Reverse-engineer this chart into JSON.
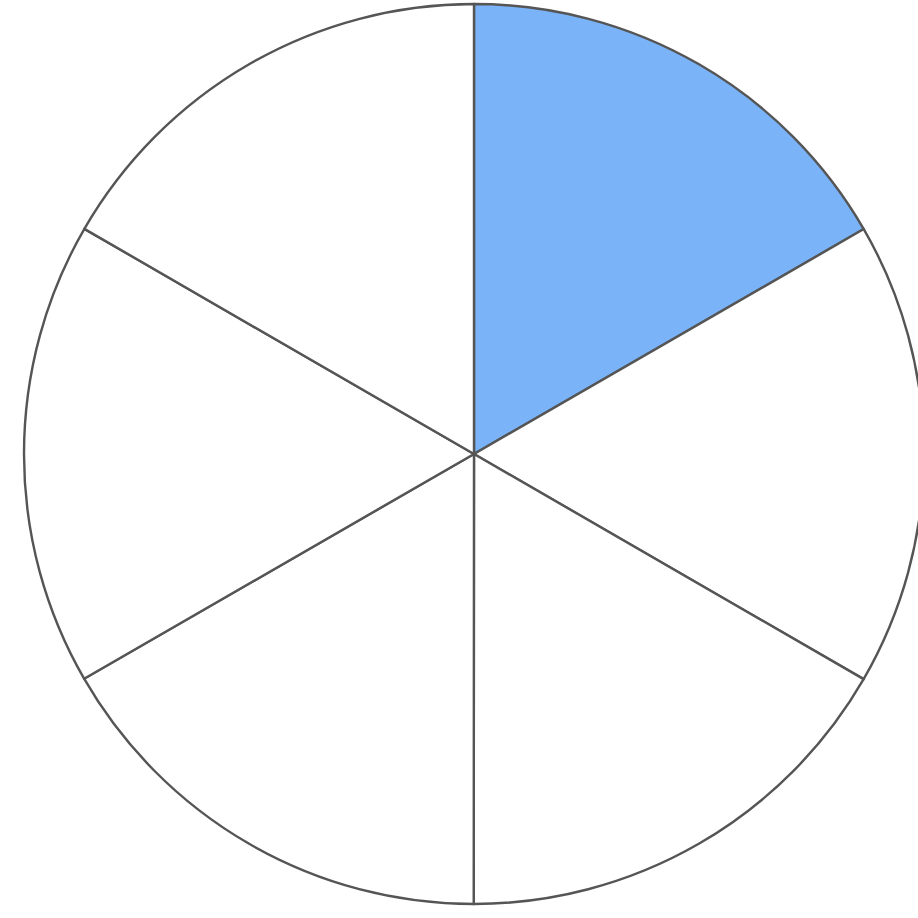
{
  "chart_data": {
    "type": "pie",
    "categories": [
      null,
      null,
      null,
      null,
      null,
      null
    ],
    "values": [
      16.67,
      16.67,
      16.67,
      16.67,
      16.66,
      16.66
    ],
    "colors": [
      "#7ab3f7",
      "#ffffff",
      "#ffffff",
      "#ffffff",
      "#ffffff",
      "#ffffff"
    ]
  }
}
